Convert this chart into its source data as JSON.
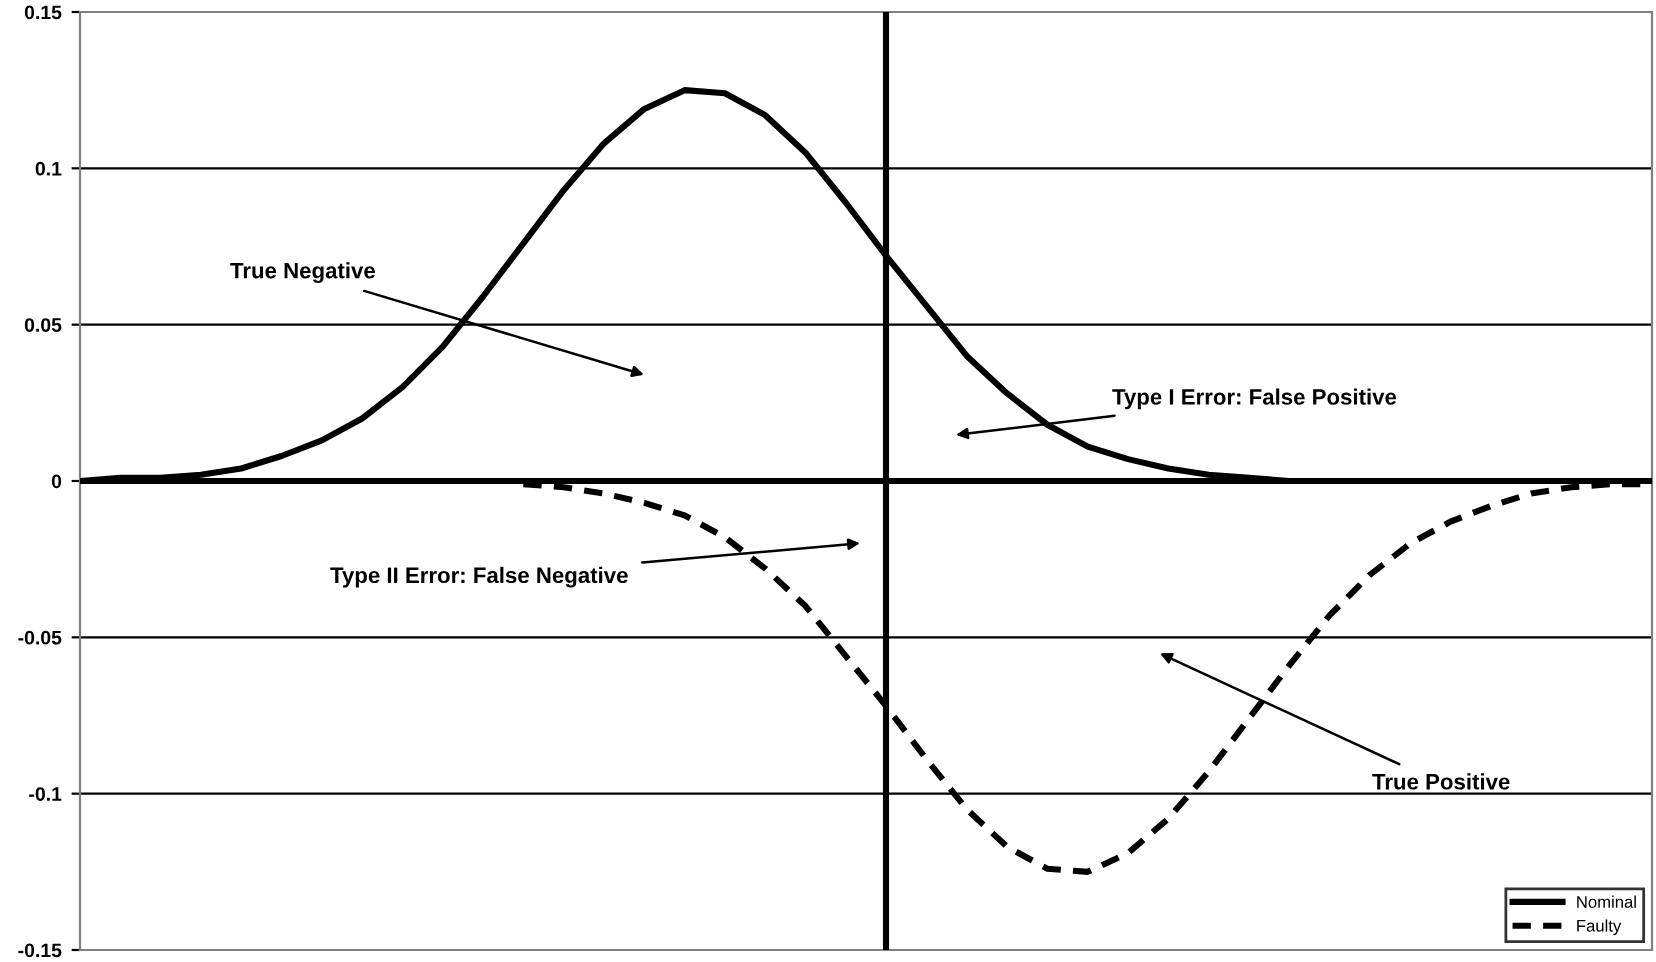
{
  "chart_data": {
    "type": "line",
    "categories": [
      null,
      null,
      null,
      null,
      null,
      null,
      null,
      null,
      null,
      null,
      null,
      null,
      null,
      null,
      null,
      null,
      null,
      null,
      null,
      null,
      null,
      null,
      null,
      null,
      null,
      null,
      null,
      null,
      null,
      null,
      null,
      null,
      null,
      null,
      null,
      null,
      null,
      null,
      null,
      null
    ],
    "series": [
      {
        "name": "Nominal",
        "color": "#000000",
        "line_style": "solid",
        "values": [
          0.0,
          0.001,
          0.001,
          0.002,
          0.004,
          0.008,
          0.013,
          0.02,
          0.03,
          0.043,
          0.059,
          0.076,
          0.093,
          0.108,
          0.119,
          0.125,
          0.124,
          0.117,
          0.105,
          0.089,
          0.072,
          0.056,
          0.04,
          0.028,
          0.018,
          0.011,
          0.007,
          0.004,
          0.002,
          0.001,
          0.0,
          0.0,
          0.0,
          0.0,
          0.0,
          0.0,
          0.0,
          0.0,
          0.0,
          0.0
        ]
      },
      {
        "name": "Faulty",
        "color": "#000000",
        "line_style": "dashed",
        "values": [
          null,
          null,
          null,
          null,
          null,
          null,
          null,
          null,
          null,
          null,
          null,
          -0.001,
          -0.002,
          -0.004,
          -0.007,
          -0.011,
          -0.018,
          -0.028,
          -0.04,
          -0.056,
          -0.072,
          -0.089,
          -0.105,
          -0.117,
          -0.124,
          -0.125,
          -0.119,
          -0.108,
          -0.093,
          -0.076,
          -0.059,
          -0.043,
          -0.03,
          -0.02,
          -0.013,
          -0.008,
          -0.004,
          -0.002,
          -0.001,
          -0.001
        ]
      }
    ],
    "ylim": [
      -0.15,
      0.15
    ],
    "yticks": [
      -0.15,
      -0.1,
      -0.05,
      0,
      0.05,
      0.1,
      0.15
    ],
    "grid": "y",
    "tick_labels": "y",
    "legend": "bottom right",
    "marker": "none",
    "annotations": [
      "True Negative",
      "Type I Error: False Positive",
      "Type II Error: False Negative",
      "True Positive"
    ]
  }
}
